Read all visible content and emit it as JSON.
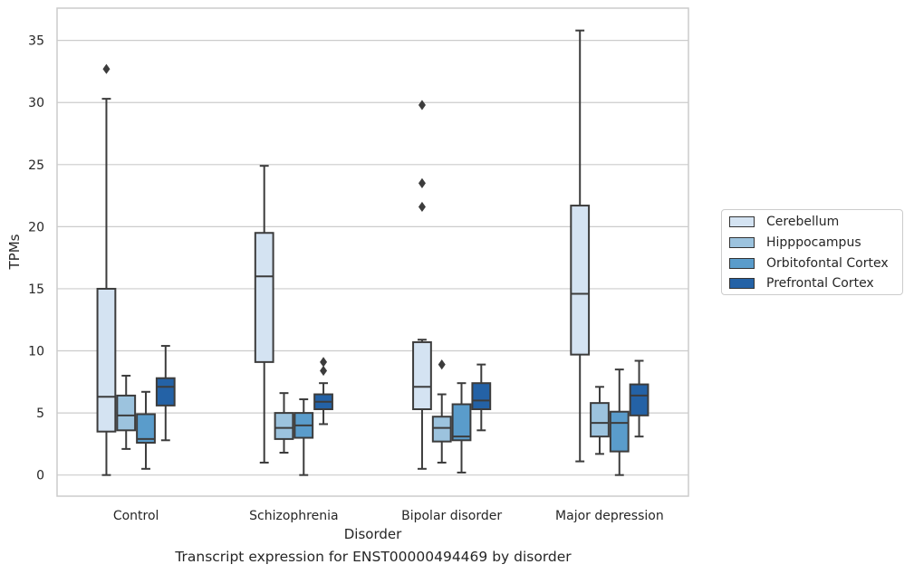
{
  "caption": "Transcript expression for ENST00000494469 by disorder",
  "chart_data": {
    "type": "boxplot",
    "xlabel": "Disorder",
    "ylabel": "TPMs",
    "ylim": [
      -1.7,
      37.6
    ],
    "yticks": [
      0,
      5,
      10,
      15,
      20,
      25,
      30,
      35
    ],
    "grid": "horizontal",
    "legend_position": "right",
    "categories": [
      "Control",
      "Schizophrenia",
      "Bipolar disorder",
      "Major depression"
    ],
    "series": [
      {
        "name": "Cerebellum",
        "color": "#d4e3f2",
        "boxes": [
          {
            "whislo": 0.0,
            "q1": 3.5,
            "med": 6.3,
            "q3": 15.0,
            "whishi": 30.3,
            "fliers": [
              32.7
            ]
          },
          {
            "whislo": 1.0,
            "q1": 9.1,
            "med": 16.0,
            "q3": 19.5,
            "whishi": 24.9,
            "fliers": []
          },
          {
            "whislo": 0.5,
            "q1": 5.3,
            "med": 7.1,
            "q3": 10.7,
            "whishi": 10.9,
            "fliers": [
              21.6,
              23.5,
              29.8
            ]
          },
          {
            "whislo": 1.1,
            "q1": 9.7,
            "med": 14.6,
            "q3": 21.7,
            "whishi": 35.8,
            "fliers": []
          }
        ]
      },
      {
        "name": "Hipppocampus",
        "color": "#9cc3de",
        "boxes": [
          {
            "whislo": 2.1,
            "q1": 3.6,
            "med": 4.8,
            "q3": 6.4,
            "whishi": 8.0,
            "fliers": []
          },
          {
            "whislo": 1.8,
            "q1": 2.9,
            "med": 3.8,
            "q3": 5.0,
            "whishi": 6.6,
            "fliers": []
          },
          {
            "whislo": 1.0,
            "q1": 2.7,
            "med": 3.8,
            "q3": 4.7,
            "whishi": 6.5,
            "fliers": [
              8.9
            ]
          },
          {
            "whislo": 1.7,
            "q1": 3.1,
            "med": 4.2,
            "q3": 5.8,
            "whishi": 7.1,
            "fliers": []
          }
        ]
      },
      {
        "name": "Orbitofontal Cortex",
        "color": "#5a9ccb",
        "boxes": [
          {
            "whislo": 0.5,
            "q1": 2.6,
            "med": 2.9,
            "q3": 4.9,
            "whishi": 6.7,
            "fliers": []
          },
          {
            "whislo": 0.0,
            "q1": 3.0,
            "med": 4.0,
            "q3": 5.0,
            "whishi": 6.1,
            "fliers": []
          },
          {
            "whislo": 0.2,
            "q1": 2.8,
            "med": 3.1,
            "q3": 5.7,
            "whishi": 7.4,
            "fliers": []
          },
          {
            "whislo": 0.0,
            "q1": 1.9,
            "med": 4.2,
            "q3": 5.1,
            "whishi": 8.5,
            "fliers": []
          }
        ]
      },
      {
        "name": "Prefrontal Cortex",
        "color": "#2462a6",
        "boxes": [
          {
            "whislo": 2.8,
            "q1": 5.6,
            "med": 7.1,
            "q3": 7.8,
            "whishi": 10.4,
            "fliers": []
          },
          {
            "whislo": 4.1,
            "q1": 5.3,
            "med": 5.9,
            "q3": 6.5,
            "whishi": 7.4,
            "fliers": [
              8.4,
              9.1
            ]
          },
          {
            "whislo": 3.6,
            "q1": 5.3,
            "med": 6.0,
            "q3": 7.4,
            "whishi": 8.9,
            "fliers": []
          },
          {
            "whislo": 3.1,
            "q1": 4.8,
            "med": 6.4,
            "q3": 7.3,
            "whishi": 9.2,
            "fliers": []
          }
        ]
      }
    ]
  }
}
